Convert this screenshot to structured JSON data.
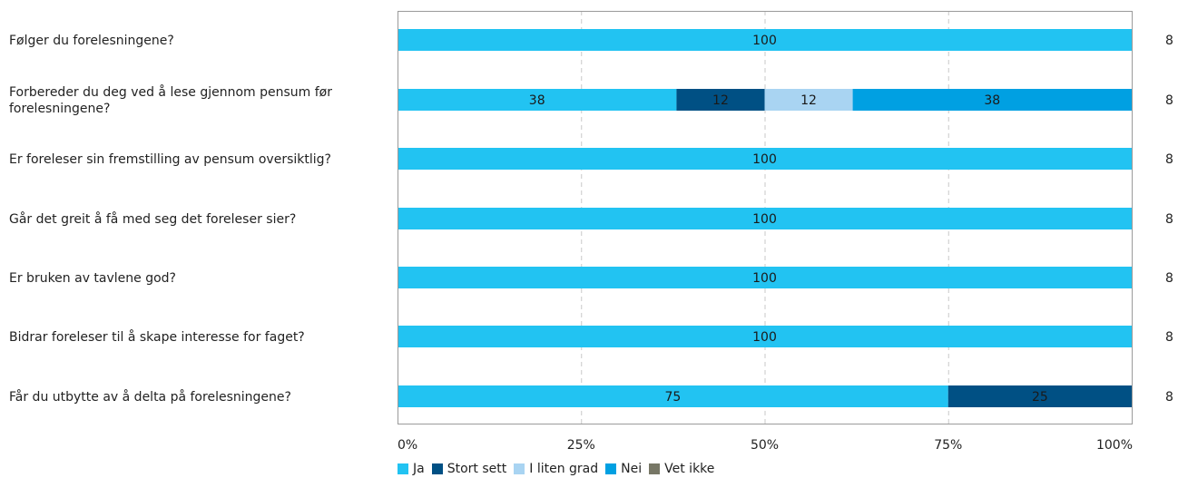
{
  "chart_data": {
    "type": "bar",
    "orientation": "horizontal",
    "stacked": true,
    "categories": [
      "Følger du forelesningene?",
      "Forbereder du deg ved å lese gjennom pensum før forelesningene?",
      "Er foreleser sin fremstilling av pensum oversiktlig?",
      "Går det greit å få med seg det foreleser sier?",
      "Er bruken av tavlene god?",
      "Bidrar foreleser til å skape interesse for faget?",
      "Får du utbytte av å delta på forelesningene?"
    ],
    "series": [
      {
        "name": "Ja",
        "color": "#22c3f2",
        "values": [
          100,
          38,
          100,
          100,
          100,
          100,
          75
        ]
      },
      {
        "name": "Stort sett",
        "color": "#005084",
        "values": [
          0,
          12,
          0,
          0,
          0,
          0,
          25
        ]
      },
      {
        "name": "I liten grad",
        "color": "#a9d4f2",
        "values": [
          0,
          12,
          0,
          0,
          0,
          0,
          0
        ]
      },
      {
        "name": "Nei",
        "color": "#00a0e2",
        "values": [
          0,
          38,
          0,
          0,
          0,
          0,
          0
        ]
      },
      {
        "name": "Vet ikke",
        "color": "#777766",
        "values": [
          0,
          0,
          0,
          0,
          0,
          0,
          0
        ]
      }
    ],
    "counts": [
      "8",
      "8",
      "8",
      "8",
      "8",
      "8",
      "8"
    ],
    "xlim": [
      0,
      100
    ],
    "xticks": [
      "0%",
      "25%",
      "50%",
      "75%",
      "100%"
    ],
    "grid": "vertical-dashed",
    "legend": "bottom"
  }
}
